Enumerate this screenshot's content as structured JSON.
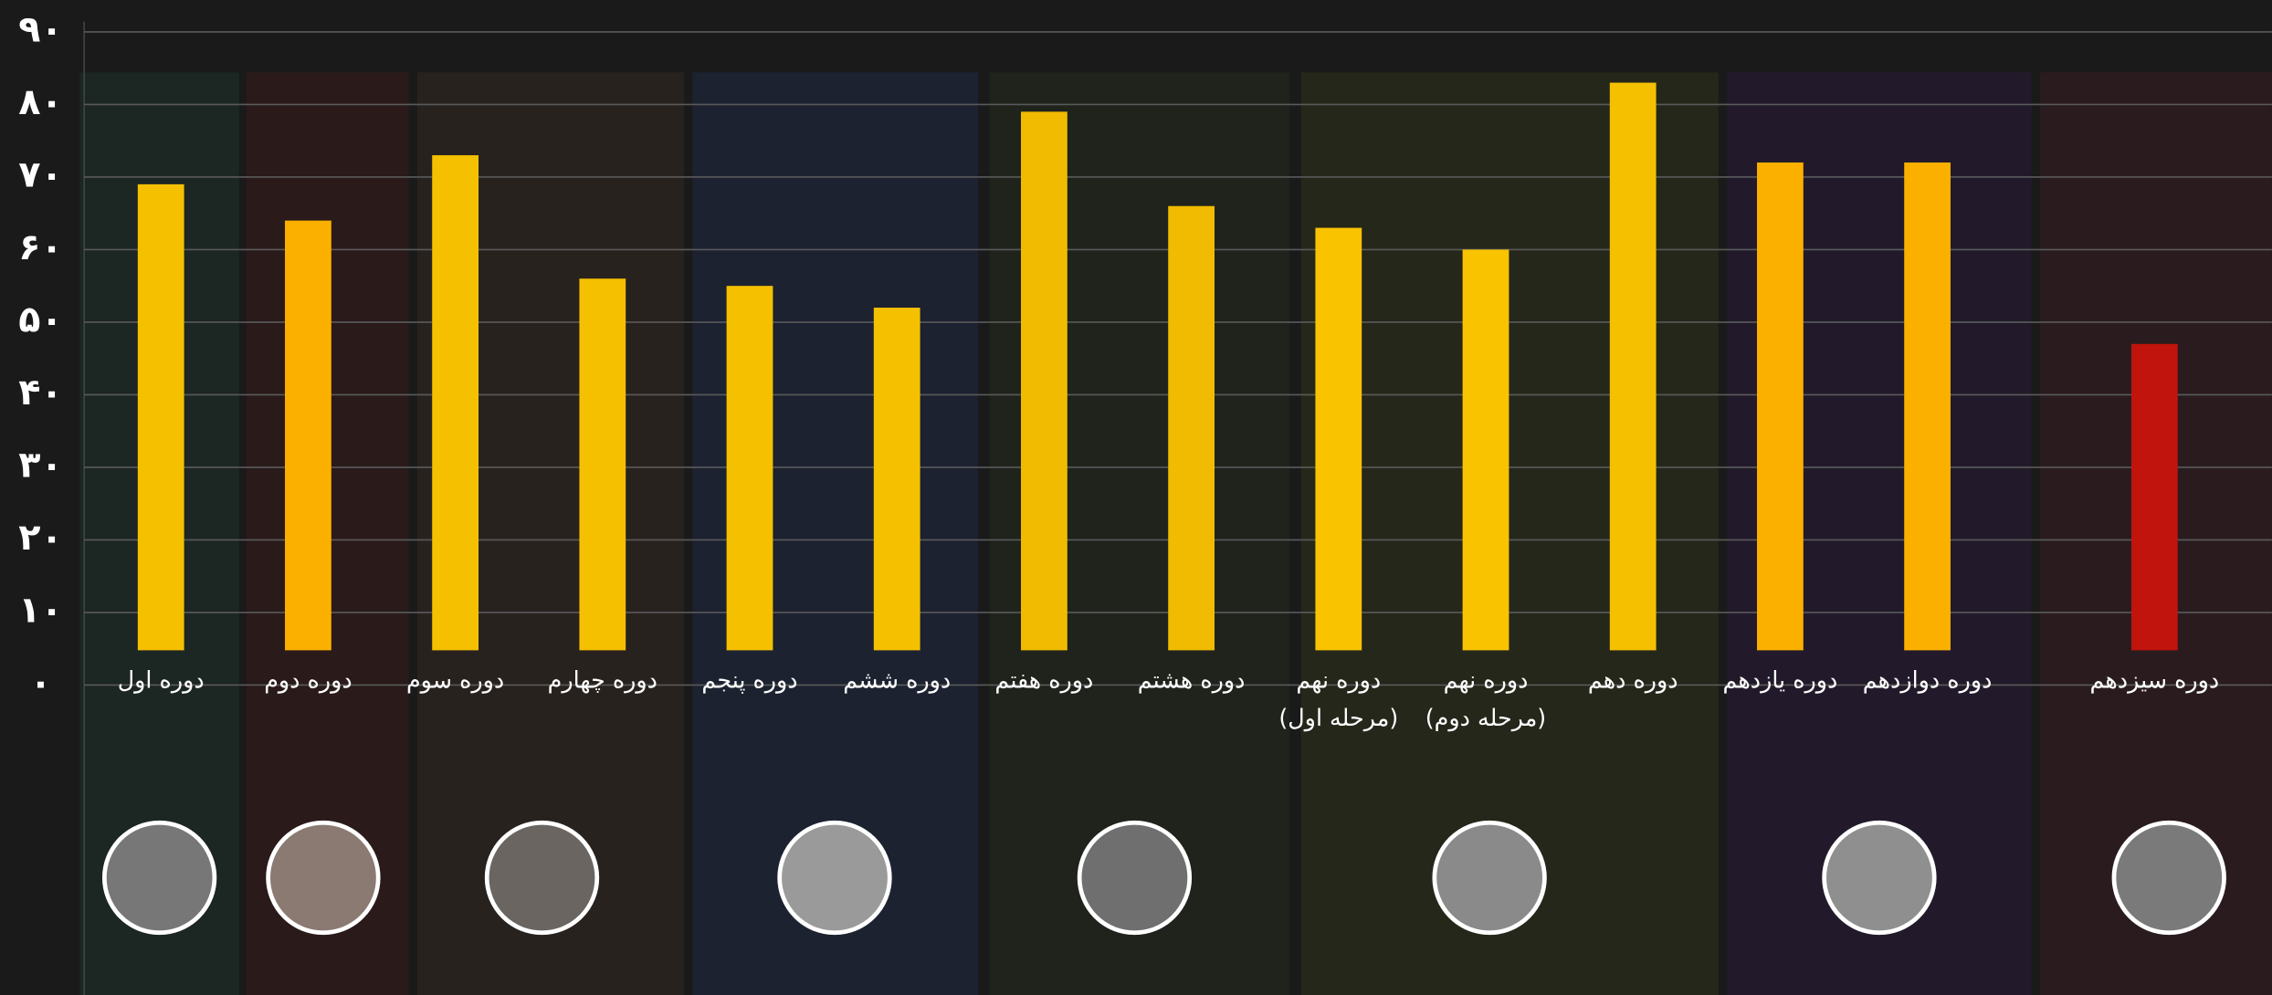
{
  "chart_data": {
    "type": "bar",
    "categories": [
      "دوره اول",
      "دوره دوم",
      "دوره سوم",
      "دوره چهارم",
      "دوره پنجم",
      "دوره ششم",
      "دوره هفتم",
      "دوره هشتم",
      "دوره نهم\n(مرحله اول)",
      "دوره نهم\n(مرحله دوم)",
      "دوره دهم",
      "دوره یازدهم",
      "دوره دوازدهم",
      "دوره سیزدهم"
    ],
    "values": [
      69,
      64,
      73,
      56,
      55,
      52,
      79,
      66,
      63,
      60,
      83,
      72,
      72,
      47
    ],
    "colors": [
      "#f5c000",
      "#fbb000",
      "#f5c000",
      "#f5c000",
      "#f5c000",
      "#f5c000",
      "#f0bb00",
      "#f0bb00",
      "#f9c300",
      "#f9c300",
      "#f5c000",
      "#fbb000",
      "#fbb000",
      "#c0140c"
    ],
    "ylim": [
      0,
      90
    ],
    "yticks": [
      {
        "value": 0,
        "label": "۰"
      },
      {
        "value": 10,
        "label": "۱۰"
      },
      {
        "value": 20,
        "label": "۲۰"
      },
      {
        "value": 30,
        "label": "۳۰"
      },
      {
        "value": 40,
        "label": "۴۰"
      },
      {
        "value": 50,
        "label": "۵۰"
      },
      {
        "value": 60,
        "label": "۶۰"
      },
      {
        "value": 70,
        "label": "۷۰"
      },
      {
        "value": 80,
        "label": "۸۰"
      },
      {
        "value": 90,
        "label": "۹۰"
      }
    ],
    "grid": true
  }
}
